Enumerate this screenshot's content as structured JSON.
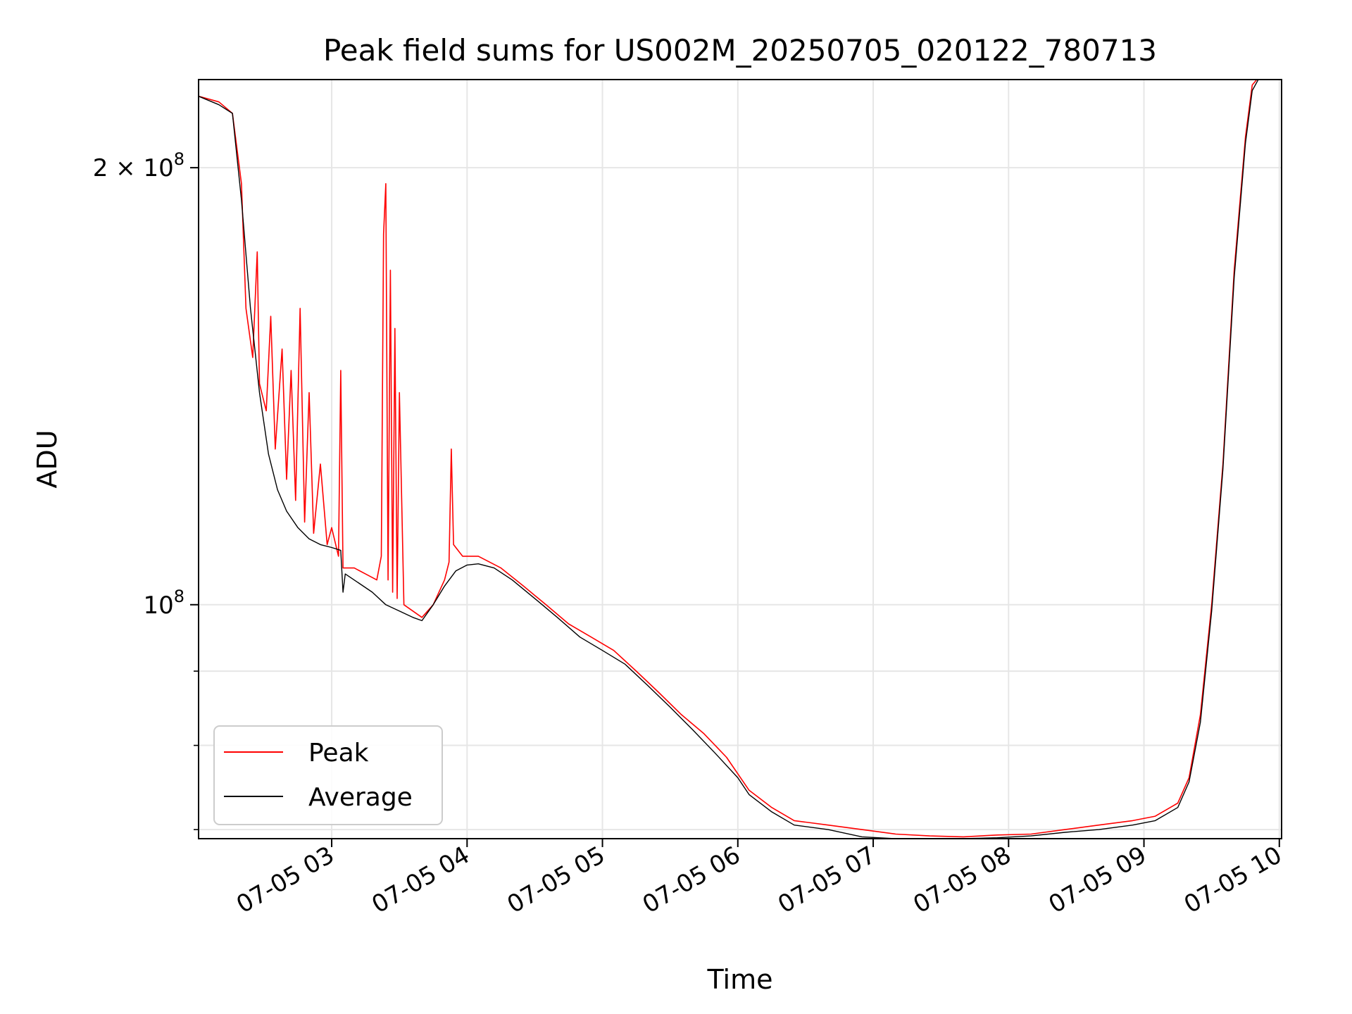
{
  "chart_data": {
    "type": "line",
    "title": "Peak field sums for US002M_20250705_020122_780713",
    "xlabel": "Time",
    "ylabel": "ADU",
    "y_scale": "log",
    "grid": true,
    "legend_placement": "lower-left",
    "xlim": [
      "2025-07-05 02:01",
      "2025-07-05 10:01"
    ],
    "ylim": [
      69000000,
      230000000
    ],
    "x_ticks": [
      "07-05 03",
      "07-05 04",
      "07-05 05",
      "07-05 06",
      "07-05 07",
      "07-05 08",
      "07-05 09",
      "07-05 10"
    ],
    "y_ticks": [
      {
        "value": 100000000,
        "base": "10",
        "exp": "8",
        "coef": ""
      },
      {
        "value": 200000000,
        "base": "10",
        "exp": "8",
        "coef": "2"
      }
    ],
    "y_minor_ticks": [
      70000000,
      80000000,
      90000000
    ],
    "series": [
      {
        "name": "Peak",
        "color": "#ff0000",
        "points": [
          [
            "02:01",
            224000000
          ],
          [
            "02:10",
            222000000
          ],
          [
            "02:16",
            218000000
          ],
          [
            "02:20",
            195000000
          ],
          [
            "02:22",
            160000000
          ],
          [
            "02:25",
            148000000
          ],
          [
            "02:27",
            175000000
          ],
          [
            "02:28",
            142000000
          ],
          [
            "02:31",
            136000000
          ],
          [
            "02:33",
            158000000
          ],
          [
            "02:35",
            128000000
          ],
          [
            "02:38",
            150000000
          ],
          [
            "02:40",
            122000000
          ],
          [
            "02:42",
            145000000
          ],
          [
            "02:44",
            118000000
          ],
          [
            "02:46",
            160000000
          ],
          [
            "02:48",
            114000000
          ],
          [
            "02:50",
            140000000
          ],
          [
            "02:52",
            112000000
          ],
          [
            "02:55",
            125000000
          ],
          [
            "02:58",
            110000000
          ],
          [
            "03:00",
            113000000
          ],
          [
            "03:03",
            108000000
          ],
          [
            "03:04",
            145000000
          ],
          [
            "03:05",
            106000000
          ],
          [
            "03:10",
            106000000
          ],
          [
            "03:15",
            105000000
          ],
          [
            "03:20",
            104000000
          ],
          [
            "03:22",
            108000000
          ],
          [
            "03:23",
            180000000
          ],
          [
            "03:24",
            195000000
          ],
          [
            "03:25",
            104000000
          ],
          [
            "03:26",
            170000000
          ],
          [
            "03:27",
            102000000
          ],
          [
            "03:28",
            155000000
          ],
          [
            "03:29",
            101000000
          ],
          [
            "03:30",
            140000000
          ],
          [
            "03:32",
            100000000
          ],
          [
            "03:36",
            99000000
          ],
          [
            "03:40",
            98000000
          ],
          [
            "03:45",
            100000000
          ],
          [
            "03:50",
            104000000
          ],
          [
            "03:52",
            107000000
          ],
          [
            "03:53",
            128000000
          ],
          [
            "03:54",
            110000000
          ],
          [
            "03:58",
            108000000
          ],
          [
            "04:05",
            108000000
          ],
          [
            "04:15",
            106000000
          ],
          [
            "04:25",
            103000000
          ],
          [
            "04:35",
            100000000
          ],
          [
            "04:45",
            97000000
          ],
          [
            "04:55",
            95000000
          ],
          [
            "05:05",
            93000000
          ],
          [
            "05:15",
            90000000
          ],
          [
            "05:25",
            87000000
          ],
          [
            "05:35",
            84000000
          ],
          [
            "05:45",
            81500000
          ],
          [
            "05:55",
            78500000
          ],
          [
            "06:05",
            74500000
          ],
          [
            "06:15",
            72500000
          ],
          [
            "06:25",
            71000000
          ],
          [
            "06:40",
            70500000
          ],
          [
            "06:55",
            70000000
          ],
          [
            "07:10",
            69500000
          ],
          [
            "07:25",
            69300000
          ],
          [
            "07:40",
            69200000
          ],
          [
            "07:55",
            69400000
          ],
          [
            "08:10",
            69500000
          ],
          [
            "08:25",
            70000000
          ],
          [
            "08:40",
            70500000
          ],
          [
            "08:55",
            71000000
          ],
          [
            "09:05",
            71500000
          ],
          [
            "09:15",
            73000000
          ],
          [
            "09:20",
            76000000
          ],
          [
            "09:25",
            84000000
          ],
          [
            "09:30",
            100000000
          ],
          [
            "09:35",
            125000000
          ],
          [
            "09:40",
            170000000
          ],
          [
            "09:45",
            210000000
          ],
          [
            "09:48",
            228000000
          ],
          [
            "09:52",
            232000000
          ]
        ]
      },
      {
        "name": "Average",
        "color": "#000000",
        "points": [
          [
            "02:01",
            224000000
          ],
          [
            "02:10",
            221000000
          ],
          [
            "02:16",
            218000000
          ],
          [
            "02:20",
            190000000
          ],
          [
            "02:24",
            160000000
          ],
          [
            "02:28",
            140000000
          ],
          [
            "02:32",
            127000000
          ],
          [
            "02:36",
            120000000
          ],
          [
            "02:40",
            116000000
          ],
          [
            "02:45",
            113000000
          ],
          [
            "02:50",
            111000000
          ],
          [
            "02:55",
            110000000
          ],
          [
            "03:00",
            109500000
          ],
          [
            "03:04",
            109000000
          ],
          [
            "03:05",
            102000000
          ],
          [
            "03:06",
            105000000
          ],
          [
            "03:12",
            103500000
          ],
          [
            "03:18",
            102000000
          ],
          [
            "03:24",
            100000000
          ],
          [
            "03:30",
            99000000
          ],
          [
            "03:36",
            98000000
          ],
          [
            "03:40",
            97500000
          ],
          [
            "03:45",
            100000000
          ],
          [
            "03:50",
            103000000
          ],
          [
            "03:55",
            105500000
          ],
          [
            "04:00",
            106500000
          ],
          [
            "04:05",
            106700000
          ],
          [
            "04:12",
            106000000
          ],
          [
            "04:20",
            104000000
          ],
          [
            "04:30",
            101000000
          ],
          [
            "04:40",
            98000000
          ],
          [
            "04:50",
            95000000
          ],
          [
            "05:00",
            93000000
          ],
          [
            "05:10",
            91000000
          ],
          [
            "05:20",
            88000000
          ],
          [
            "05:30",
            85000000
          ],
          [
            "05:40",
            82000000
          ],
          [
            "05:50",
            79000000
          ],
          [
            "06:00",
            76000000
          ],
          [
            "06:05",
            74000000
          ],
          [
            "06:15",
            72000000
          ],
          [
            "06:25",
            70500000
          ],
          [
            "06:40",
            70000000
          ],
          [
            "06:55",
            69200000
          ],
          [
            "07:10",
            69000000
          ],
          [
            "07:25",
            69000000
          ],
          [
            "07:40",
            69000000
          ],
          [
            "07:55",
            69100000
          ],
          [
            "08:10",
            69300000
          ],
          [
            "08:25",
            69700000
          ],
          [
            "08:40",
            70000000
          ],
          [
            "08:55",
            70500000
          ],
          [
            "09:05",
            71000000
          ],
          [
            "09:15",
            72500000
          ],
          [
            "09:20",
            75500000
          ],
          [
            "09:25",
            83000000
          ],
          [
            "09:30",
            99000000
          ],
          [
            "09:35",
            124000000
          ],
          [
            "09:40",
            168000000
          ],
          [
            "09:45",
            208000000
          ],
          [
            "09:48",
            226000000
          ],
          [
            "09:52",
            232000000
          ]
        ]
      }
    ]
  }
}
